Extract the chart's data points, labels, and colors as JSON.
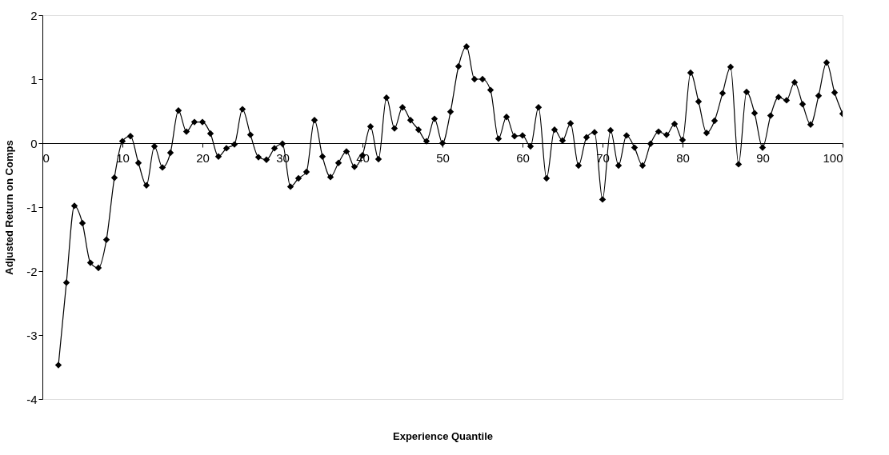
{
  "chart_data": {
    "type": "line",
    "xlabel": "Experience Quantile",
    "ylabel": "Adjusted Return on Comps",
    "x": [
      2,
      3,
      4,
      5,
      6,
      7,
      8,
      9,
      10,
      11,
      12,
      13,
      14,
      15,
      16,
      17,
      18,
      19,
      20,
      21,
      22,
      23,
      24,
      25,
      26,
      27,
      28,
      29,
      30,
      31,
      32,
      33,
      34,
      35,
      36,
      37,
      38,
      39,
      40,
      41,
      42,
      43,
      44,
      45,
      46,
      47,
      48,
      49,
      50,
      51,
      52,
      53,
      54,
      55,
      56,
      57,
      58,
      59,
      60,
      61,
      62,
      63,
      64,
      65,
      66,
      67,
      68,
      69,
      70,
      71,
      72,
      73,
      74,
      75,
      76,
      77,
      78,
      79,
      80,
      81,
      82,
      83,
      84,
      85,
      86,
      87,
      88,
      89,
      90,
      91,
      92,
      93,
      94,
      95,
      96,
      97,
      98,
      99,
      100
    ],
    "series": [
      {
        "color": "#000000",
        "values": [
          -3.47,
          -2.18,
          -0.98,
          -1.25,
          -1.87,
          -1.95,
          -1.51,
          -0.54,
          0.03,
          0.11,
          -0.31,
          -0.66,
          -0.05,
          -0.38,
          -0.15,
          0.51,
          0.18,
          0.33,
          0.33,
          0.15,
          -0.21,
          -0.08,
          -0.02,
          0.53,
          0.13,
          -0.22,
          -0.26,
          -0.08,
          -0.01,
          -0.68,
          -0.55,
          -0.45,
          0.36,
          -0.21,
          -0.53,
          -0.31,
          -0.13,
          -0.37,
          -0.19,
          0.26,
          -0.25,
          0.71,
          0.23,
          0.56,
          0.36,
          0.21,
          0.03,
          0.38,
          0.0,
          0.49,
          1.2,
          1.51,
          1.0,
          1.0,
          0.83,
          0.07,
          0.41,
          0.11,
          0.12,
          -0.05,
          0.56,
          -0.55,
          0.21,
          0.04,
          0.31,
          -0.35,
          0.09,
          0.17,
          -0.88,
          0.2,
          -0.35,
          0.12,
          -0.07,
          -0.35,
          -0.01,
          0.18,
          0.13,
          0.3,
          0.05,
          1.1,
          0.65,
          0.16,
          0.35,
          0.78,
          1.19,
          -0.33,
          0.8,
          0.47,
          -0.07,
          0.43,
          0.72,
          0.67,
          0.95,
          0.61,
          0.29,
          0.74,
          1.26,
          0.79,
          0.46
        ]
      }
    ],
    "xlim": [
      0,
      100
    ],
    "xticks": [
      0,
      10,
      20,
      30,
      40,
      50,
      60,
      70,
      80,
      90,
      100
    ],
    "ylim": [
      -4,
      2
    ],
    "yticks": [
      -4,
      -3,
      -2,
      -1,
      0,
      1,
      2
    ],
    "grid": false,
    "legend": false,
    "marker": "diamond",
    "line_style": "solid"
  }
}
